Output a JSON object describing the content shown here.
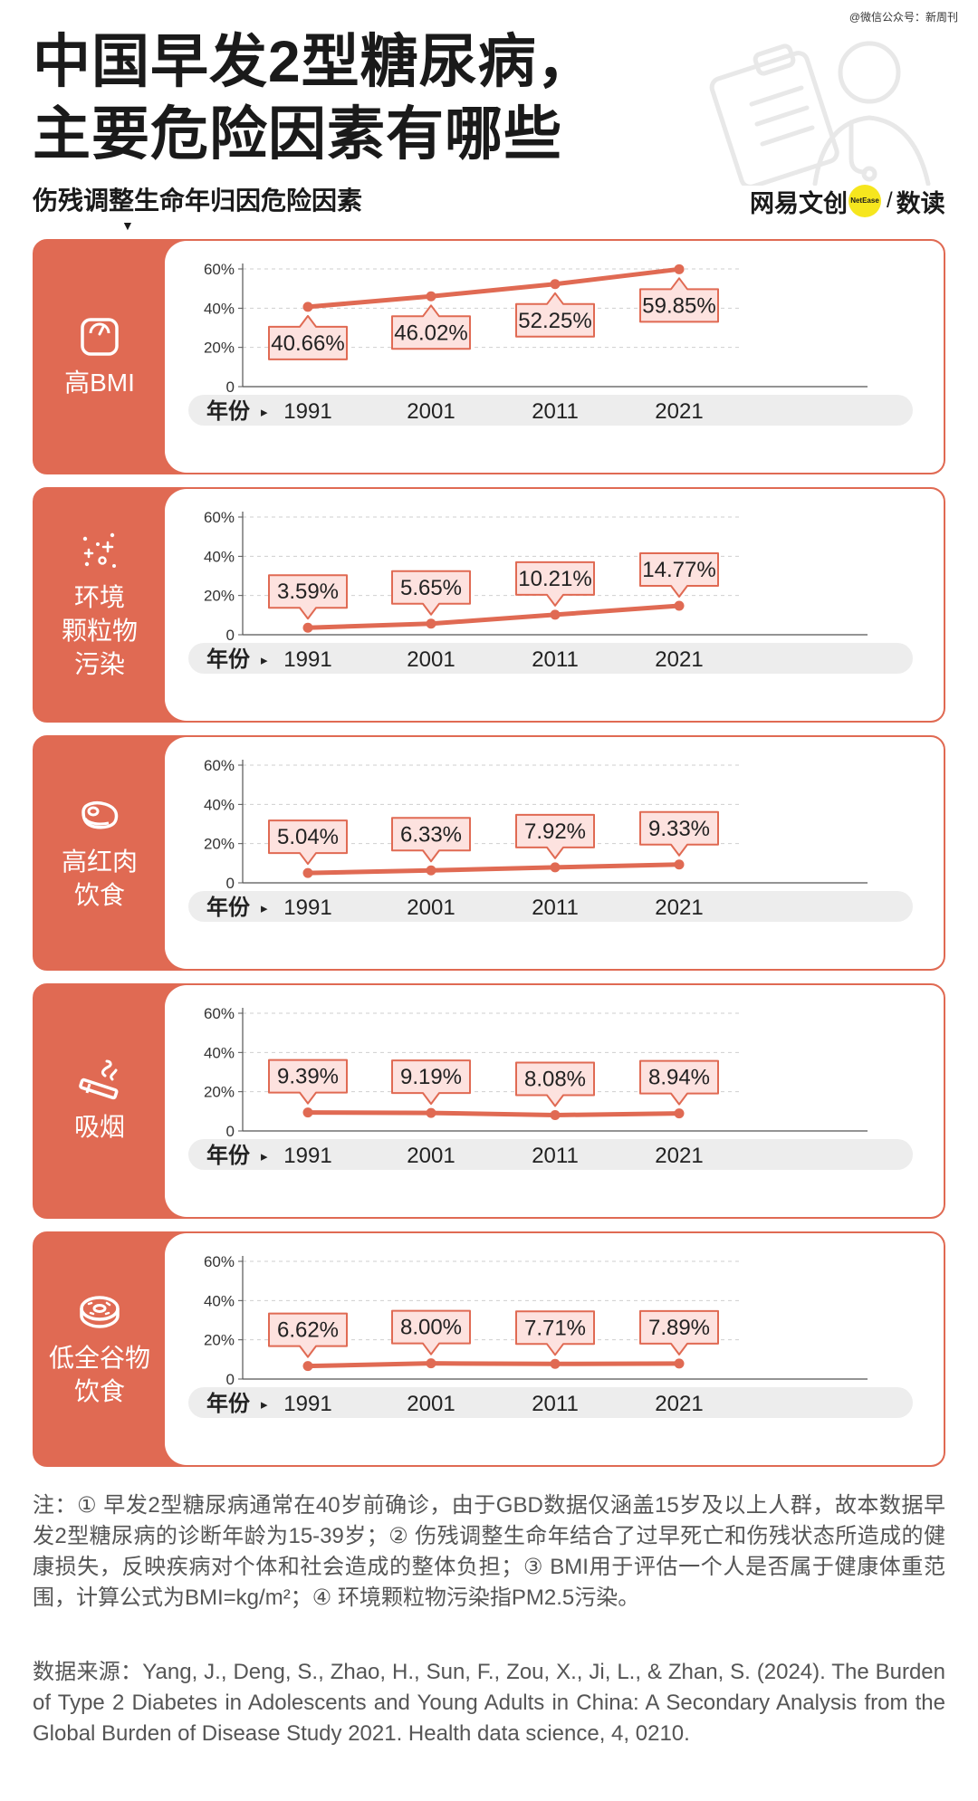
{
  "watermark": "@微信公众号：新周刊",
  "title_lines": [
    "中国早发2型糖尿病，",
    "主要危险因素有哪些"
  ],
  "subtitle": "伤残调整生命年归因危险因素",
  "brand": {
    "name": "网易文创",
    "badge": "NetEase",
    "section": "数读"
  },
  "colors": {
    "accent": "#e06a53",
    "label_fill": "#fde2df",
    "axis_band": "#ededed"
  },
  "axis": {
    "year_label": "年份",
    "arrow": "▸"
  },
  "chart_data": [
    {
      "type": "line",
      "title": "高BMI",
      "icon": "scale-icon",
      "x": [
        "1991",
        "2001",
        "2011",
        "2021"
      ],
      "values": [
        40.66,
        46.02,
        52.25,
        59.85
      ],
      "labels": [
        "40.66%",
        "46.02%",
        "52.25%",
        "59.85%"
      ],
      "ylim": [
        0,
        60
      ],
      "yticks": [
        "0",
        "20%",
        "40%",
        "60%"
      ],
      "xlabel": "年份",
      "grid": true
    },
    {
      "type": "line",
      "title": "环境\n颗粒物\n污染",
      "icon": "particles-icon",
      "x": [
        "1991",
        "2001",
        "2011",
        "2021"
      ],
      "values": [
        3.59,
        5.65,
        10.21,
        14.77
      ],
      "labels": [
        "3.59%",
        "5.65%",
        "10.21%",
        "14.77%"
      ],
      "ylim": [
        0,
        60
      ],
      "yticks": [
        "0",
        "20%",
        "40%",
        "60%"
      ],
      "xlabel": "年份",
      "grid": true
    },
    {
      "type": "line",
      "title": "高红肉\n饮食",
      "icon": "meat-icon",
      "x": [
        "1991",
        "2001",
        "2011",
        "2021"
      ],
      "values": [
        5.04,
        6.33,
        7.92,
        9.33
      ],
      "labels": [
        "5.04%",
        "6.33%",
        "7.92%",
        "9.33%"
      ],
      "ylim": [
        0,
        60
      ],
      "yticks": [
        "0",
        "20%",
        "40%",
        "60%"
      ],
      "xlabel": "年份",
      "grid": true
    },
    {
      "type": "line",
      "title": "吸烟",
      "icon": "cigarette-icon",
      "x": [
        "1991",
        "2001",
        "2011",
        "2021"
      ],
      "values": [
        9.39,
        9.19,
        8.08,
        8.94
      ],
      "labels": [
        "9.39%",
        "9.19%",
        "8.08%",
        "8.94%"
      ],
      "ylim": [
        0,
        60
      ],
      "yticks": [
        "0",
        "20%",
        "40%",
        "60%"
      ],
      "xlabel": "年份",
      "grid": true
    },
    {
      "type": "line",
      "title": "低全谷物\n饮食",
      "icon": "grain-icon",
      "x": [
        "1991",
        "2001",
        "2011",
        "2021"
      ],
      "values": [
        6.62,
        8.0,
        7.71,
        7.89
      ],
      "labels": [
        "6.62%",
        "8.00%",
        "7.71%",
        "7.89%"
      ],
      "ylim": [
        0,
        60
      ],
      "yticks": [
        "0",
        "20%",
        "40%",
        "60%"
      ],
      "xlabel": "年份",
      "grid": true
    }
  ],
  "note": "注：① 早发2型糖尿病通常在40岁前确诊，由于GBD数据仅涵盖15岁及以上人群，故本数据早发2型糖尿病的诊断年龄为15-39岁；② 伤残调整生命年结合了过早死亡和伤残状态所造成的健康损失，反映疾病对个体和社会造成的整体负担；③ BMI用于评估一个人是否属于健康体重范围，计算公式为BMI=kg/m²；④ 环境颗粒物污染指PM2.5污染。",
  "source": "数据来源：Yang, J., Deng, S., Zhao, H., Sun, F., Zou, X., Ji, L., & Zhan, S. (2024). The Burden of Type 2 Diabetes in Adolescents and Young Adults in China: A Secondary Analysis from the Global Burden of Disease Study 2021. Health data science, 4, 0210."
}
